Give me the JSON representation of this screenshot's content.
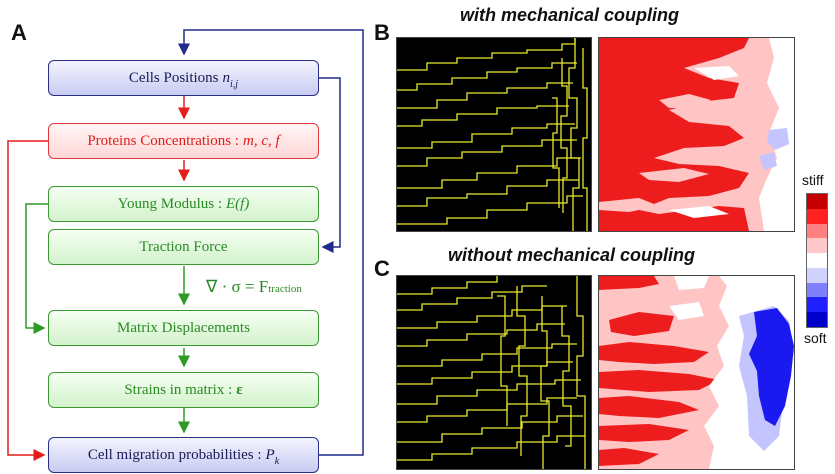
{
  "panel_labels": {
    "a": "A",
    "b": "B",
    "c": "C"
  },
  "flowchart": {
    "cells_positions": {
      "label": "Cells Positions",
      "math": "n",
      "sub": "i,j"
    },
    "proteins": {
      "label": "Proteins Concentrations : ",
      "math": "m, c, f"
    },
    "young_modulus": {
      "label": "Young Modulus : ",
      "math": "E(f)"
    },
    "traction_force": {
      "label": "Traction Force"
    },
    "matrix_displacements": {
      "label": "Matrix Displacements"
    },
    "strains": {
      "label": "Strains in matrix : ",
      "math": "ε"
    },
    "migration": {
      "label": "Cell migration probabilities : ",
      "math": "P",
      "sub": "k"
    },
    "equation": {
      "lhs": "∇ · σ = F",
      "sub": "traction"
    }
  },
  "panel_b": {
    "title": "with mechanical coupling"
  },
  "panel_c": {
    "title": "without mechanical coupling"
  },
  "legend": {
    "top_label": "stiff",
    "bottom_label": "soft",
    "colors": [
      "#c40000",
      "#ff2020",
      "#ff8080",
      "#ffc8c8",
      "#ffffff",
      "#d2d2ff",
      "#8080ff",
      "#2020ff",
      "#0000cc"
    ]
  },
  "colors": {
    "blue_arrow": "#1f2a8a",
    "red_arrow": "#e51c1c",
    "green_arrow": "#2e9a26",
    "cell_trace": "#e8e830",
    "map_red": "#ee1d1d",
    "map_pink": "#ffc4c4",
    "map_lavender": "#c4c4ff",
    "map_blue": "#1a1af0"
  }
}
